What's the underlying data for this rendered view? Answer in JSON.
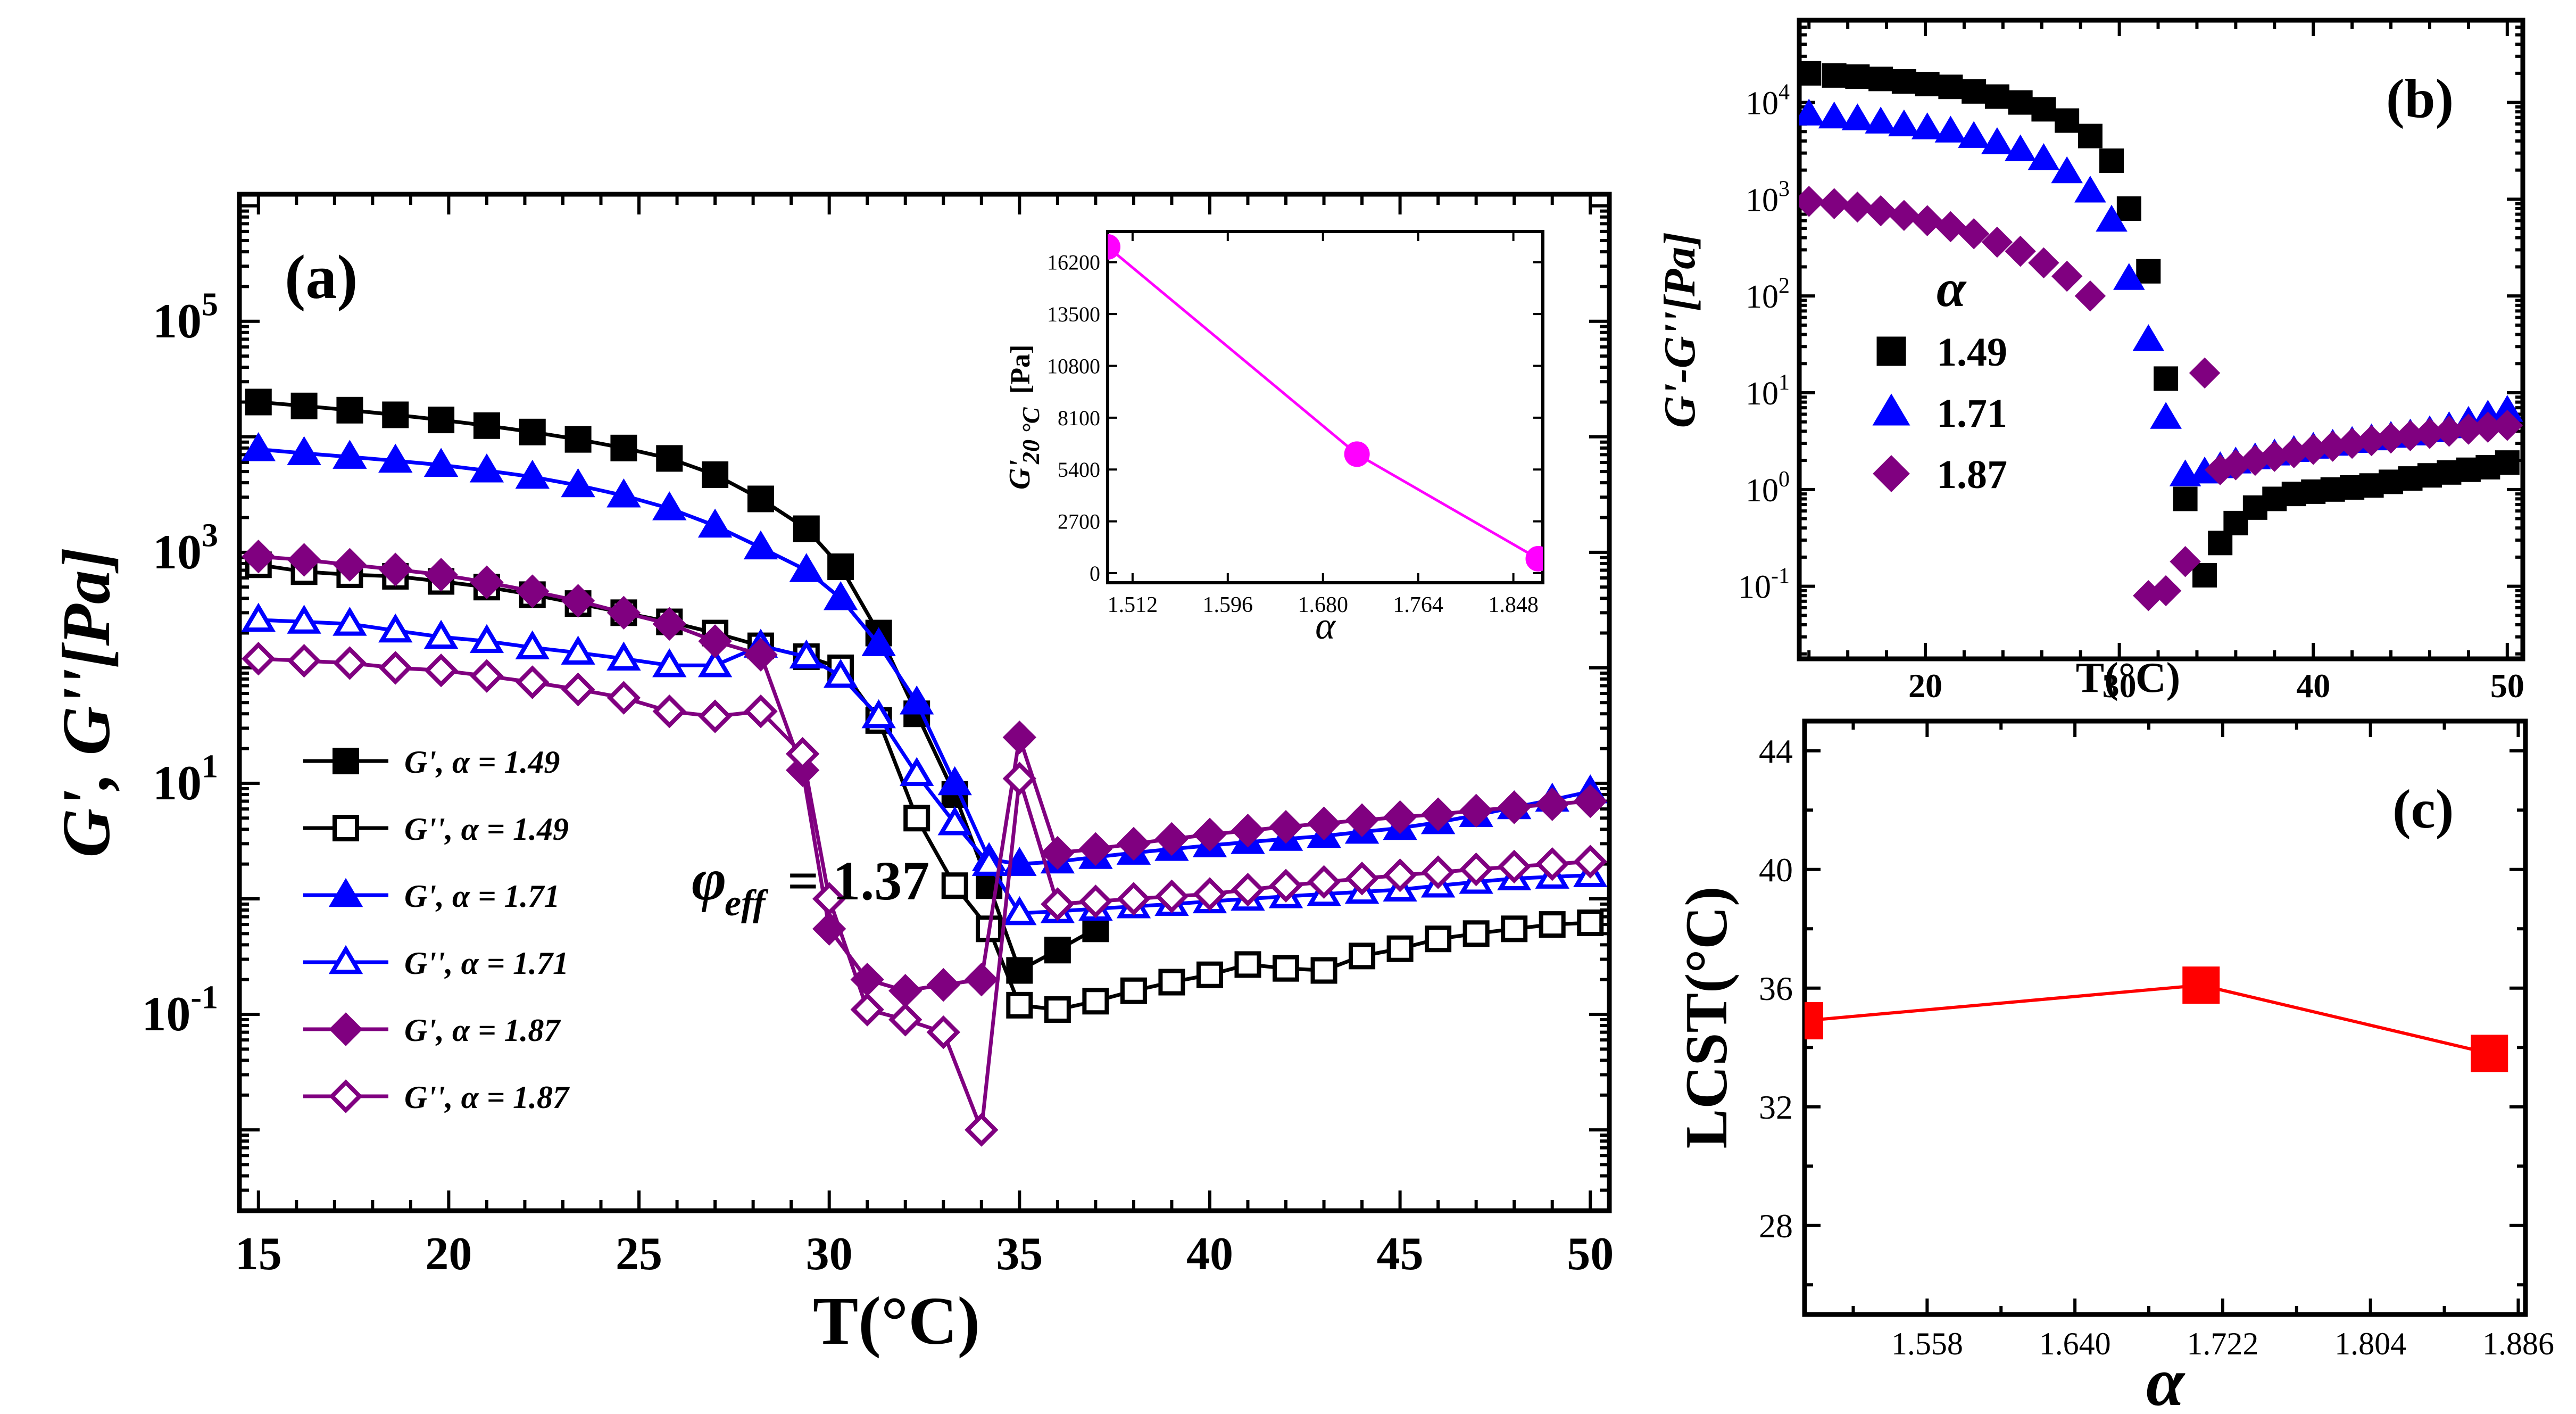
{
  "chart_data": [
    {
      "id": "a",
      "type": "line",
      "panel_label": "(a)",
      "xlabel": "T(°C)",
      "ylabel": "G', G''[Pa]",
      "yscale": "log",
      "xlim": [
        14.5,
        50.5
      ],
      "ylim_log10": [
        -2.7,
        6.1
      ],
      "x_ticks": [
        "15",
        "20",
        "25",
        "30",
        "35",
        "40",
        "45",
        "50"
      ],
      "y_ticks": [
        {
          "base": "10",
          "exp": "5"
        },
        {
          "base": "10",
          "exp": "3"
        },
        {
          "base": "10",
          "exp": "1"
        },
        {
          "base": "10",
          "exp": "-1"
        }
      ],
      "annotation": {
        "symbol": "φ",
        "subscript": "eff",
        "text": " = 1.37"
      },
      "legend": [
        {
          "label": "G',  α = 1.49"
        },
        {
          "label": "G'',  α = 1.49"
        },
        {
          "label": "G',  α = 1.71"
        },
        {
          "label": "G'',  α = 1.71"
        },
        {
          "label": "G',  α = 1.87"
        },
        {
          "label": "G'',  α = 1.87"
        }
      ],
      "series": [
        {
          "name": "G', α = 1.49",
          "color": "#000000",
          "marker": "square",
          "filled": true,
          "x": [
            15.0,
            16.2,
            17.4,
            18.6,
            19.8,
            21.0,
            22.2,
            23.4,
            24.6,
            25.8,
            27.0,
            28.2,
            29.4,
            30.3,
            31.3,
            32.3,
            33.3,
            34.2,
            35.0,
            36.0,
            37.0
          ],
          "y": [
            20000,
            18500,
            17000,
            15500,
            14000,
            12500,
            11000,
            9500,
            8000,
            6500,
            4700,
            2900,
            1600,
            750,
            200,
            40,
            8,
            1.3,
            0.24,
            0.36,
            0.55
          ]
        },
        {
          "name": "G'', α = 1.49",
          "color": "#000000",
          "marker": "square",
          "filled": false,
          "x": [
            15.0,
            16.2,
            17.4,
            18.6,
            19.8,
            21.0,
            22.2,
            23.4,
            24.6,
            25.8,
            27.0,
            28.2,
            29.4,
            30.3,
            31.3,
            32.3,
            33.3,
            34.2,
            35.0,
            36.0,
            37.0,
            38.0,
            39.0,
            40.0,
            41.0,
            42.0,
            43.0,
            44.0,
            45.0,
            46.0,
            47.0,
            48.0,
            49.0,
            50.0
          ],
          "y": [
            780,
            680,
            640,
            620,
            560,
            500,
            430,
            360,
            300,
            250,
            200,
            155,
            125,
            100,
            35,
            5,
            1.3,
            0.55,
            0.12,
            0.11,
            0.13,
            0.16,
            0.19,
            0.22,
            0.27,
            0.25,
            0.24,
            0.32,
            0.37,
            0.45,
            0.5,
            0.55,
            0.6,
            0.62
          ]
        },
        {
          "name": "G', α = 1.71",
          "color": "#0000ff",
          "marker": "triangle",
          "filled": true,
          "x": [
            15.0,
            16.2,
            17.4,
            18.6,
            19.8,
            21.0,
            22.2,
            23.4,
            24.6,
            25.8,
            27.0,
            28.2,
            29.4,
            30.3,
            31.3,
            32.3,
            33.3,
            34.2,
            35.0,
            36.0,
            37.0,
            38.0,
            39.0,
            40.0,
            41.0,
            42.0,
            43.0,
            44.0,
            45.0,
            46.0,
            47.0,
            48.0,
            49.0,
            50.0
          ],
          "y": [
            7800,
            7200,
            6700,
            6200,
            5700,
            5100,
            4500,
            3800,
            3100,
            2400,
            1700,
            1100,
            700,
            400,
            160,
            50,
            10,
            2.2,
            2.0,
            2.1,
            2.3,
            2.5,
            2.7,
            2.9,
            3.1,
            3.3,
            3.5,
            3.8,
            4.1,
            4.6,
            5.3,
            6.2,
            7.2,
            8.5
          ]
        },
        {
          "name": "G'', α = 1.71",
          "color": "#0000ff",
          "marker": "triangle",
          "filled": false,
          "x": [
            15.0,
            16.2,
            17.4,
            18.6,
            19.8,
            21.0,
            22.2,
            23.4,
            24.6,
            25.8,
            27.0,
            28.2,
            29.4,
            30.3,
            31.3,
            32.3,
            33.3,
            34.2,
            35.0,
            36.0,
            37.0,
            38.0,
            39.0,
            40.0,
            41.0,
            42.0,
            43.0,
            44.0,
            45.0,
            46.0,
            47.0,
            48.0,
            49.0,
            50.0
          ],
          "y": [
            260,
            250,
            240,
            210,
            185,
            170,
            150,
            135,
            120,
            105,
            105,
            155,
            125,
            85,
            38,
            12,
            4.5,
            2.0,
            0.75,
            0.78,
            0.82,
            0.86,
            0.9,
            0.95,
            1.0,
            1.05,
            1.1,
            1.15,
            1.2,
            1.3,
            1.4,
            1.5,
            1.55,
            1.6
          ]
        },
        {
          "name": "G', α = 1.87",
          "color": "#800080",
          "marker": "diamond",
          "filled": true,
          "x": [
            15.0,
            16.2,
            17.4,
            18.6,
            19.8,
            21.0,
            22.2,
            23.4,
            24.6,
            25.8,
            27.0,
            28.2,
            29.3,
            30.0,
            31.0,
            32.0,
            33.0,
            34.0,
            35.0,
            36.0,
            37.0,
            38.0,
            39.0,
            40.0,
            41.0,
            42.0,
            43.0,
            44.0,
            45.0,
            46.0,
            47.0,
            48.0,
            49.0,
            50.0
          ],
          "y": [
            920,
            860,
            780,
            710,
            640,
            550,
            460,
            380,
            300,
            240,
            170,
            130,
            13,
            0.55,
            0.2,
            0.16,
            0.18,
            0.2,
            25,
            2.5,
            2.7,
            3.0,
            3.3,
            3.6,
            3.9,
            4.2,
            4.5,
            4.8,
            5.1,
            5.4,
            5.8,
            6.2,
            6.6,
            7.0
          ]
        },
        {
          "name": "G'', α = 1.87",
          "color": "#800080",
          "marker": "diamond",
          "filled": false,
          "x": [
            15.0,
            16.2,
            17.4,
            18.6,
            19.8,
            21.0,
            22.2,
            23.4,
            24.6,
            25.8,
            27.0,
            28.2,
            29.3,
            30.0,
            31.0,
            32.0,
            33.0,
            34.0,
            35.0,
            36.0,
            37.0,
            38.0,
            39.0,
            40.0,
            41.0,
            42.0,
            43.0,
            44.0,
            45.0,
            46.0,
            47.0,
            48.0,
            49.0,
            50.0
          ],
          "y": [
            120,
            115,
            110,
            100,
            95,
            85,
            75,
            65,
            55,
            42,
            38,
            42,
            18,
            1.0,
            0.11,
            0.09,
            0.07,
            0.01,
            11,
            0.9,
            0.95,
            1.0,
            1.05,
            1.1,
            1.2,
            1.3,
            1.4,
            1.5,
            1.6,
            1.7,
            1.8,
            1.9,
            2.0,
            2.1
          ]
        }
      ]
    },
    {
      "id": "a-inset",
      "type": "line",
      "xlabel": "α",
      "ylabel": "G'20 °C[Pa]",
      "ylabel_main": "G'",
      "ylabel_sub": "20 °C",
      "ylabel_unit": "[Pa]",
      "xlim": [
        1.49,
        1.874
      ],
      "ylim": [
        -500,
        17800
      ],
      "x_ticks": [
        "1.512",
        "1.596",
        "1.680",
        "1.764",
        "1.848"
      ],
      "y_ticks": [
        "0",
        "2700",
        "5400",
        "8100",
        "10800",
        "13500",
        "16200"
      ],
      "series": [
        {
          "name": "G'20°C",
          "color": "#ff00ff",
          "marker": "circle",
          "filled": true,
          "x": [
            1.49,
            1.71,
            1.87
          ],
          "y": [
            17000,
            6200,
            750
          ]
        }
      ]
    },
    {
      "id": "b",
      "type": "scatter",
      "panel_label": "(b)",
      "xlabel": "T(°C)",
      "ylabel": "G'-G''[Pa]",
      "yscale": "log",
      "xlim": [
        13.5,
        50.8
      ],
      "ylim_log10": [
        -1.75,
        4.85
      ],
      "x_ticks": [
        "20",
        "30",
        "40",
        "50"
      ],
      "y_ticks": [
        {
          "base": "10",
          "exp": "4"
        },
        {
          "base": "10",
          "exp": "3"
        },
        {
          "base": "10",
          "exp": "2"
        },
        {
          "base": "10",
          "exp": "1"
        },
        {
          "base": "10",
          "exp": "0"
        },
        {
          "base": "10",
          "exp": "-1"
        }
      ],
      "legend_title": "α",
      "legend": [
        {
          "label": "1.49"
        },
        {
          "label": "1.71"
        },
        {
          "label": "1.87"
        }
      ],
      "series": [
        {
          "name": "1.49",
          "color": "#000000",
          "marker": "square",
          "filled": true,
          "x": [
            14.0,
            15.3,
            16.5,
            17.7,
            18.9,
            20.1,
            21.3,
            22.5,
            23.7,
            24.9,
            26.1,
            27.3,
            28.5,
            29.6,
            30.5,
            31.5,
            32.4,
            33.4,
            34.4,
            35.2,
            36.0,
            37.0,
            38.0,
            39.0,
            40.0,
            41.0,
            42.0,
            43.0,
            44.0,
            45.0,
            46.0,
            47.0,
            48.0,
            49.0,
            50.0
          ],
          "y": [
            20000,
            19000,
            18500,
            17500,
            16500,
            15500,
            14500,
            13000,
            11500,
            10000,
            8500,
            6500,
            4500,
            2500,
            800,
            180,
            14,
            0.8,
            0.13,
            0.28,
            0.45,
            0.65,
            0.8,
            0.9,
            0.95,
            1.0,
            1.05,
            1.1,
            1.2,
            1.3,
            1.4,
            1.5,
            1.6,
            1.7,
            1.9
          ]
        },
        {
          "name": "1.71",
          "color": "#0000ff",
          "marker": "triangle",
          "filled": true,
          "x": [
            14.0,
            15.3,
            16.5,
            17.7,
            18.9,
            20.1,
            21.3,
            22.5,
            23.7,
            24.9,
            26.1,
            27.3,
            28.5,
            29.6,
            30.5,
            31.5,
            32.4,
            33.4,
            34.4,
            35.2,
            36.0,
            37.0,
            38.0,
            39.0,
            40.0,
            41.0,
            42.0,
            43.0,
            44.0,
            45.0,
            46.0,
            47.0,
            48.0,
            49.0,
            50.0
          ],
          "y": [
            7500,
            7000,
            6700,
            6200,
            5800,
            5400,
            5000,
            4400,
            3800,
            3200,
            2600,
            1900,
            1200,
            600,
            150,
            35,
            5.5,
            1.4,
            1.5,
            1.7,
            1.9,
            2.1,
            2.3,
            2.5,
            2.7,
            2.9,
            3.1,
            3.3,
            3.5,
            3.7,
            4.0,
            4.4,
            5.0,
            5.8,
            6.5
          ]
        },
        {
          "name": "1.87",
          "color": "#800080",
          "marker": "diamond",
          "filled": true,
          "x": [
            14.0,
            15.3,
            16.5,
            17.7,
            18.9,
            20.1,
            21.3,
            22.5,
            23.7,
            24.9,
            26.1,
            27.3,
            28.5,
            31.5,
            32.4,
            33.4,
            34.4,
            35.2,
            36.0,
            37.0,
            38.0,
            39.0,
            40.0,
            41.0,
            42.0,
            43.0,
            44.0,
            45.0,
            46.0,
            47.0,
            48.0,
            49.0,
            50.0
          ],
          "y": [
            950,
            900,
            830,
            760,
            680,
            600,
            520,
            440,
            360,
            290,
            220,
            160,
            100,
            0.08,
            0.09,
            0.18,
            16,
            1.6,
            1.8,
            2.0,
            2.2,
            2.4,
            2.6,
            2.8,
            3.0,
            3.2,
            3.4,
            3.6,
            3.8,
            4.0,
            4.2,
            4.4,
            4.6
          ]
        }
      ]
    },
    {
      "id": "c",
      "type": "line",
      "panel_label": "(c)",
      "xlabel": "α",
      "ylabel": "LCST(°C)",
      "xlim": [
        1.49,
        1.89
      ],
      "ylim": [
        25,
        45
      ],
      "x_ticks": [
        "1.558",
        "1.640",
        "1.722",
        "1.804",
        "1.886"
      ],
      "y_ticks": [
        "28",
        "32",
        "36",
        "40",
        "44"
      ],
      "series": [
        {
          "name": "LCST",
          "color": "#ff0000",
          "marker": "square",
          "filled": true,
          "x": [
            1.49,
            1.71,
            1.87
          ],
          "y": [
            34.9,
            36.1,
            33.8
          ]
        }
      ]
    }
  ]
}
